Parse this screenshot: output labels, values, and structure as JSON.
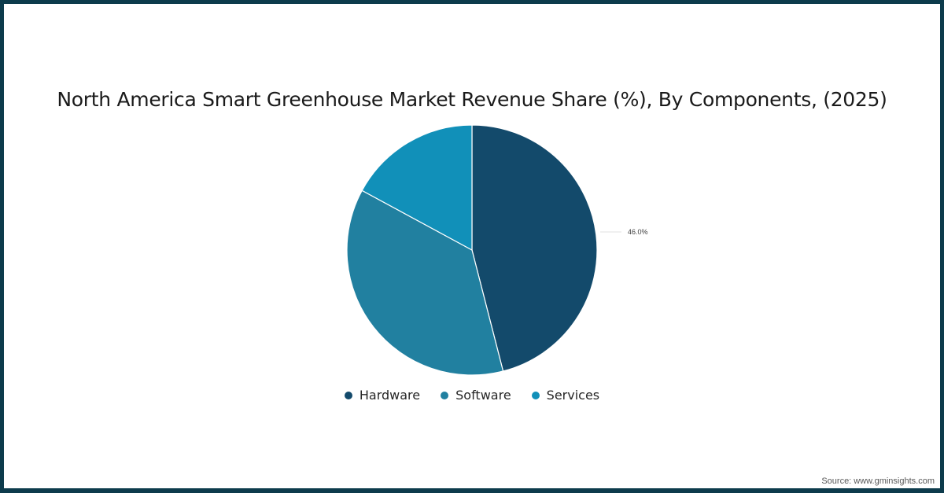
{
  "title": "North America Smart Greenhouse Market Revenue Share (%), By Components, (2025)",
  "source": "Source: www.gminsights.com",
  "colors": {
    "border": "#0d3b4c",
    "hardware": "#134a6b",
    "software": "#2180a0",
    "services": "#1190b9"
  },
  "chart_data": {
    "type": "pie",
    "title": "North America Smart Greenhouse Market Revenue Share (%), By Components, (2025)",
    "categories": [
      "Hardware",
      "Software",
      "Services"
    ],
    "values": [
      46.0,
      36.9,
      17.1
    ],
    "unit": "%",
    "data_labels": [
      {
        "category": "Hardware",
        "text": "46.0%"
      }
    ],
    "start_angle_deg": 0,
    "direction": "clockwise",
    "legend_position": "bottom",
    "colors": [
      "#134a6b",
      "#2180a0",
      "#1190b9"
    ]
  },
  "legend": [
    {
      "label": "Hardware",
      "color": "#134a6b"
    },
    {
      "label": "Software",
      "color": "#2180a0"
    },
    {
      "label": "Services",
      "color": "#1190b9"
    }
  ],
  "labels": {
    "hardware_value": "46.0%"
  }
}
